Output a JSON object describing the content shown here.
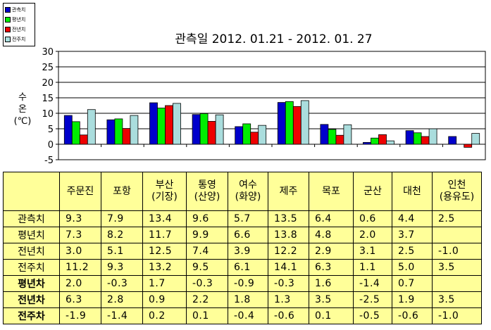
{
  "legend": [
    {
      "label": "관측치",
      "color": "#0000cc"
    },
    {
      "label": "평년치",
      "color": "#00ee00"
    },
    {
      "label": "전년치",
      "color": "#ee0000"
    },
    {
      "label": "전주치",
      "color": "#aadddd"
    }
  ],
  "chart_data": {
    "type": "bar",
    "title": "관측일 2012. 01.21  -  2012. 01. 27",
    "ylabel_line1": "수",
    "ylabel_line2": "온",
    "ylabel_unit": "(℃)",
    "ylim": [
      -5,
      30
    ],
    "yticks": [
      "30",
      "25",
      "20",
      "15",
      "10",
      "5",
      "0",
      "-5"
    ],
    "grid": true,
    "legend_position": "top-left",
    "categories": [
      "주문진",
      "포항",
      "부산(기장)",
      "통영(산양)",
      "여수(화양)",
      "제주",
      "목포",
      "군산",
      "대천",
      "인천(용유도)"
    ],
    "series": [
      {
        "name": "관측치",
        "color": "#0000cc",
        "values": [
          9.3,
          7.9,
          13.4,
          9.6,
          5.7,
          13.5,
          6.4,
          0.6,
          4.4,
          2.5
        ]
      },
      {
        "name": "평년치",
        "color": "#00ee00",
        "values": [
          7.3,
          8.2,
          11.7,
          9.9,
          6.6,
          13.8,
          4.8,
          2.0,
          3.7,
          null
        ]
      },
      {
        "name": "전년치",
        "color": "#ee0000",
        "values": [
          3.0,
          5.1,
          12.5,
          7.4,
          3.9,
          12.2,
          2.9,
          3.1,
          2.5,
          -1.0
        ]
      },
      {
        "name": "전주치",
        "color": "#aadddd",
        "values": [
          11.2,
          9.3,
          13.2,
          9.5,
          6.1,
          14.1,
          6.3,
          1.1,
          5.0,
          3.5
        ]
      }
    ]
  },
  "table": {
    "headers": [
      {
        "l1": "주문진",
        "l2": ""
      },
      {
        "l1": "포항",
        "l2": ""
      },
      {
        "l1": "부산",
        "l2": "(기장)"
      },
      {
        "l1": "통영",
        "l2": "(산양)"
      },
      {
        "l1": "여수",
        "l2": "(화양)"
      },
      {
        "l1": "제주",
        "l2": ""
      },
      {
        "l1": "목포",
        "l2": ""
      },
      {
        "l1": "군산",
        "l2": ""
      },
      {
        "l1": "대천",
        "l2": ""
      },
      {
        "l1": "인천",
        "l2": "(용유도)"
      }
    ],
    "rows": [
      {
        "label": "관측치",
        "bold": false,
        "values": [
          "9.3",
          "7.9",
          "13.4",
          "9.6",
          "5.7",
          "13.5",
          "6.4",
          "0.6",
          "4.4",
          "2.5"
        ]
      },
      {
        "label": "평년치",
        "bold": false,
        "values": [
          "7.3",
          "8.2",
          "11.7",
          "9.9",
          "6.6",
          "13.8",
          "4.8",
          "2.0",
          "3.7",
          ""
        ]
      },
      {
        "label": "전년치",
        "bold": false,
        "values": [
          "3.0",
          "5.1",
          "12.5",
          "7.4",
          "3.9",
          "12.2",
          "2.9",
          "3.1",
          "2.5",
          "-1.0"
        ]
      },
      {
        "label": "전주치",
        "bold": false,
        "values": [
          "11.2",
          "9.3",
          "13.2",
          "9.5",
          "6.1",
          "14.1",
          "6.3",
          "1.1",
          "5.0",
          "3.5"
        ]
      },
      {
        "label": "평년차",
        "bold": true,
        "values": [
          "2.0",
          "-0.3",
          "1.7",
          "-0.3",
          "-0.9",
          "-0.3",
          "1.6",
          "-1.4",
          "0.7",
          ""
        ]
      },
      {
        "label": "전년차",
        "bold": true,
        "values": [
          "6.3",
          "2.8",
          "0.9",
          "2.2",
          "1.8",
          "1.3",
          "3.5",
          "-2.5",
          "1.9",
          "3.5"
        ]
      },
      {
        "label": "전주차",
        "bold": true,
        "values": [
          "-1.9",
          "-1.4",
          "0.2",
          "0.1",
          "-0.4",
          "-0.6",
          "0.1",
          "-0.5",
          "-0.6",
          "-1.0"
        ]
      }
    ]
  }
}
